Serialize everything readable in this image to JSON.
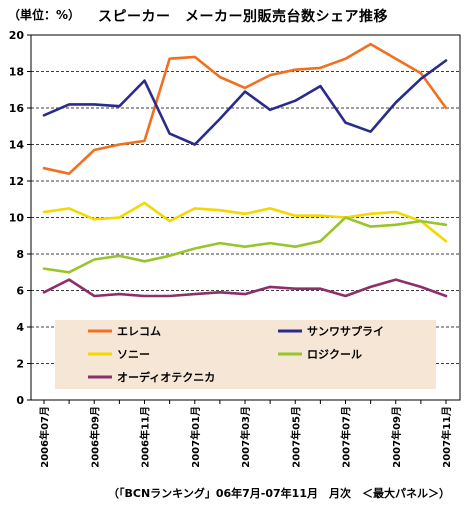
{
  "chart_data": {
    "type": "line",
    "title": "スピーカー　メーカー別販売台数シェア推移",
    "ylabel": "（単位：%）",
    "source": "（「BCNランキング」06年7月-07年11月　月次　＜最大パネル＞）",
    "ylim": [
      0,
      20
    ],
    "yticks": [
      0,
      2,
      4,
      6,
      8,
      10,
      12,
      14,
      16,
      18,
      20
    ],
    "grid": true,
    "legend_position": "bottom-center",
    "categories": [
      "2006年07月",
      "2006年08月",
      "2006年09月",
      "2006年10月",
      "2006年11月",
      "2006年12月",
      "2007年01月",
      "2007年02月",
      "2007年03月",
      "2007年04月",
      "2007年05月",
      "2007年06月",
      "2007年07月",
      "2007年08月",
      "2007年09月",
      "2007年10月",
      "2007年11月"
    ],
    "xtick_labels": [
      "2006年07月",
      "2006年09月",
      "2006年11月",
      "2007年01月",
      "2007年03月",
      "2007年05月",
      "2007年07月",
      "2007年09月",
      "2007年11月"
    ],
    "series": [
      {
        "name": "エレコム",
        "color": "#F07020",
        "values": [
          12.7,
          12.4,
          13.7,
          14.0,
          14.2,
          18.7,
          18.8,
          17.7,
          17.1,
          17.8,
          18.1,
          18.2,
          18.7,
          19.5,
          18.7,
          17.9,
          16.0
        ]
      },
      {
        "name": "サンワサプライ",
        "color": "#2B2B8C",
        "values": [
          15.6,
          16.2,
          16.2,
          16.1,
          17.5,
          14.6,
          14.0,
          15.4,
          16.9,
          15.9,
          16.4,
          17.2,
          15.2,
          14.7,
          16.3,
          17.6,
          18.6
        ]
      },
      {
        "name": "ソニー",
        "color": "#F4D800",
        "values": [
          10.3,
          10.5,
          9.9,
          10.0,
          10.8,
          9.8,
          10.5,
          10.4,
          10.2,
          10.5,
          10.1,
          10.1,
          10.0,
          10.2,
          10.3,
          9.8,
          8.7
        ]
      },
      {
        "name": "ロジクール",
        "color": "#99C42A",
        "values": [
          7.2,
          7.0,
          7.7,
          7.9,
          7.6,
          7.9,
          8.3,
          8.6,
          8.4,
          8.6,
          8.4,
          8.7,
          10.0,
          9.5,
          9.6,
          9.8,
          9.6
        ]
      },
      {
        "name": "オーディオテクニカ",
        "color": "#8C2F6A",
        "values": [
          5.9,
          6.6,
          5.7,
          5.8,
          5.7,
          5.7,
          5.8,
          5.9,
          5.8,
          6.2,
          6.1,
          6.1,
          5.7,
          6.2,
          6.6,
          6.2,
          5.7
        ]
      }
    ]
  }
}
